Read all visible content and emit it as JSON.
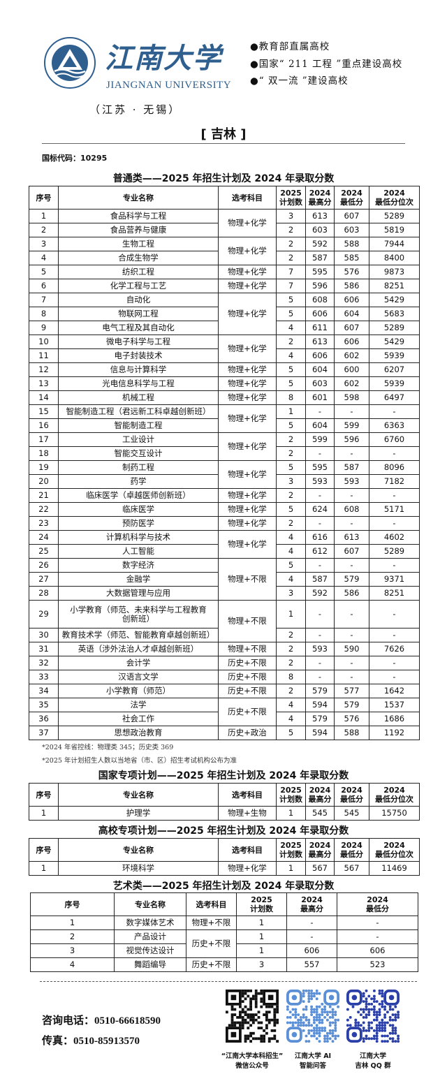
{
  "header": {
    "logo_cn": "江南大学",
    "logo_en": "JIANGNAN UNIVERSITY",
    "logo_ring_text": "JIANGNAN UNIVERSITY",
    "location": "（江苏 · 无锡）",
    "features": [
      "●教育部直属高校",
      "●国家“ 211 工程 ”重点建设高校",
      "●“ 双一流 ”建设高校"
    ],
    "province": "[ 吉林 ]",
    "code": "国标代码：10295"
  },
  "colors": {
    "brand": "#2f5f8f"
  },
  "main": {
    "title": "普通类——2025 年招生计划及 2024 年录取分数",
    "headers": [
      "序号",
      "专业名称",
      "选考科目",
      "2025\n计划数",
      "2024\n最高分",
      "2024\n最低分",
      "2024\n最低分位次"
    ],
    "rows": [
      [
        "1",
        "食品科学与工程",
        "3",
        "613",
        "607",
        "5289"
      ],
      [
        "2",
        "食品营养与健康",
        "2",
        "603",
        "603",
        "5819"
      ],
      [
        "3",
        "生物工程",
        "2",
        "592",
        "588",
        "7944"
      ],
      [
        "4",
        "合成生物学",
        "2",
        "587",
        "585",
        "8400"
      ],
      [
        "5",
        "纺织工程",
        "7",
        "595",
        "576",
        "9873"
      ],
      [
        "6",
        "化学工程与工艺",
        "7",
        "596",
        "586",
        "8251"
      ],
      [
        "7",
        "自动化",
        "5",
        "608",
        "606",
        "5429"
      ],
      [
        "8",
        "物联网工程",
        "5",
        "606",
        "604",
        "5683"
      ],
      [
        "9",
        "电气工程及其自动化",
        "4",
        "611",
        "607",
        "5289"
      ],
      [
        "10",
        "微电子科学与工程",
        "2",
        "613",
        "606",
        "5429"
      ],
      [
        "11",
        "电子封装技术",
        "4",
        "606",
        "602",
        "5939"
      ],
      [
        "12",
        "信息与计算科学",
        "5",
        "604",
        "600",
        "6207"
      ],
      [
        "13",
        "光电信息科学与工程",
        "5",
        "603",
        "602",
        "5939"
      ],
      [
        "14",
        "机械工程",
        "8",
        "601",
        "598",
        "6497"
      ],
      [
        "15",
        "智能制造工程（君远新工科卓越创新班）",
        "1",
        "-",
        "-",
        "-"
      ],
      [
        "16",
        "智能制造工程",
        "5",
        "604",
        "599",
        "6363"
      ],
      [
        "17",
        "工业设计",
        "2",
        "599",
        "596",
        "6760"
      ],
      [
        "18",
        "智能交互设计",
        "2",
        "-",
        "-",
        "-"
      ],
      [
        "19",
        "制药工程",
        "5",
        "595",
        "587",
        "8096"
      ],
      [
        "20",
        "药学",
        "3",
        "593",
        "593",
        "7182"
      ],
      [
        "21",
        "临床医学（卓越医师创新班）",
        "2",
        "-",
        "-",
        "-"
      ],
      [
        "22",
        "临床医学",
        "5",
        "624",
        "608",
        "5171"
      ],
      [
        "23",
        "预防医学",
        "2",
        "-",
        "-",
        "-"
      ],
      [
        "24",
        "计算机科学与技术",
        "4",
        "616",
        "613",
        "4602"
      ],
      [
        "25",
        "人工智能",
        "4",
        "612",
        "607",
        "5289"
      ],
      [
        "26",
        "数字经济",
        "5",
        "-",
        "-",
        "-"
      ],
      [
        "27",
        "金融学",
        "4",
        "587",
        "579",
        "9371"
      ],
      [
        "28",
        "大数据管理与应用",
        "3",
        "592",
        "586",
        "8251"
      ],
      [
        "29",
        "小学教育（师范、未来科学与工程教育创新班）",
        "1",
        "-",
        "-",
        "-"
      ],
      [
        "30",
        "教育技术学（师范、智能教育卓越创新班）",
        "2",
        "-",
        "-",
        "-"
      ],
      [
        "31",
        "英语（涉外法治人才卓越创新班）",
        "2",
        "593",
        "590",
        "7626"
      ],
      [
        "32",
        "会计学",
        "2",
        "-",
        "-",
        "-"
      ],
      [
        "33",
        "汉语言文学",
        "8",
        "-",
        "-",
        "-"
      ],
      [
        "34",
        "小学教育（师范）",
        "2",
        "579",
        "577",
        "1642"
      ],
      [
        "35",
        "法学",
        "4",
        "594",
        "579",
        "1537"
      ],
      [
        "36",
        "社会工作",
        "4",
        "579",
        "576",
        "1686"
      ],
      [
        "37",
        "思想政治教育",
        "5",
        "594",
        "588",
        "1192"
      ]
    ],
    "subject_groups": [
      [
        "物理+化学",
        2
      ],
      [
        "物理+化学",
        2
      ],
      [
        "物理+化学",
        1
      ],
      [
        "物理+化学",
        1
      ],
      [
        "物理+化学",
        3
      ],
      [
        "物理+化学",
        2
      ],
      [
        "物理+化学",
        1
      ],
      [
        "物理+化学",
        1
      ],
      [
        "物理+化学",
        1
      ],
      [
        "物理+化学",
        2
      ],
      [
        "物理+化学",
        2
      ],
      [
        "物理+化学",
        2
      ],
      [
        "物理+化学",
        1
      ],
      [
        "物理+化学",
        1
      ],
      [
        "物理+化学",
        1
      ],
      [
        "物理+化学",
        2
      ],
      [
        "物理+不限",
        3
      ],
      [
        "物理+不限",
        2
      ],
      [
        "物理+不限",
        1
      ],
      [
        "历史+不限",
        1
      ],
      [
        "历史+不限",
        1
      ],
      [
        "历史+不限",
        1
      ],
      [
        "历史+不限",
        2
      ],
      [
        "历史+政治",
        1
      ]
    ],
    "notes": [
      "*2024 年省控线：物理类 345；历史类 369",
      "*2025 年计划招生人数以当地省（市、区）招生考试机构公布为准"
    ]
  },
  "national": {
    "title": "国家专项计划——2025 年招生计划及 2024 年录取分数",
    "rows": [
      [
        "1",
        "护理学",
        "1",
        "545",
        "545",
        "15750"
      ]
    ],
    "subject_groups": [
      [
        "物理+生物",
        1
      ]
    ]
  },
  "college": {
    "title": "高校专项计划——2025 年招生计划及 2024 年录取分数",
    "rows": [
      [
        "1",
        "环境科学",
        "1",
        "567",
        "567",
        "11469"
      ]
    ],
    "subject_groups": [
      [
        "物理+化学",
        1
      ]
    ]
  },
  "art": {
    "title": "艺术类——2025 年招生计划及 2024 年录取分数",
    "headers": [
      "序号",
      "专业名称",
      "选考科目",
      "2025\n计划数",
      "2024\n最高分",
      "2024\n最低分"
    ],
    "rows": [
      [
        "1",
        "数字媒体艺术",
        "1",
        "-",
        "-"
      ],
      [
        "2",
        "产品设计",
        "1",
        "-",
        "-"
      ],
      [
        "3",
        "视觉传达设计",
        "1",
        "606",
        "606"
      ],
      [
        "4",
        "舞蹈编导",
        "3",
        "557",
        "523"
      ]
    ],
    "subject_groups": [
      [
        "物理+不限",
        1
      ],
      [
        "历史+不限",
        2
      ],
      [
        "历史+不限",
        1
      ]
    ]
  },
  "footer": {
    "phone": "咨询电话：0510-66618590",
    "fax": "传真：0510-85913570",
    "qr_captions": [
      [
        "“江南大学本科招生”",
        "微信公众号"
      ],
      [
        "江南大学 AI",
        "智能问答"
      ],
      [
        "江南大学",
        "吉林 QQ 群"
      ]
    ]
  }
}
